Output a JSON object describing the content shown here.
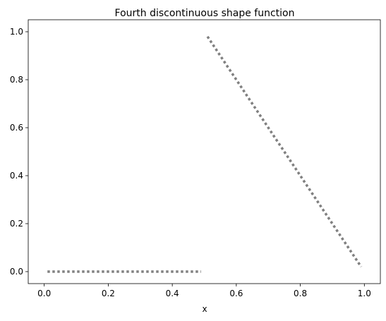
{
  "chart_data": {
    "type": "line",
    "title": "Fourth discontinuous shape function",
    "xlabel": "x",
    "ylabel": "",
    "xlim": [
      -0.05,
      1.05
    ],
    "ylim": [
      -0.05,
      1.05
    ],
    "xticks": [
      0.0,
      0.2,
      0.4,
      0.6,
      0.8,
      1.0
    ],
    "xtick_labels": [
      "0.0",
      "0.2",
      "0.4",
      "0.6",
      "0.8",
      "1.0"
    ],
    "yticks": [
      0.0,
      0.2,
      0.4,
      0.6,
      0.8,
      1.0
    ],
    "ytick_labels": [
      "0.0",
      "0.2",
      "0.4",
      "0.6",
      "0.8",
      "1.0"
    ],
    "grid": false,
    "series": [
      {
        "segments": [
          [
            [
              0.01,
              0.0
            ],
            [
              0.49,
              0.0
            ]
          ],
          [
            [
              0.51,
              0.98
            ],
            [
              0.99,
              0.02
            ]
          ]
        ],
        "color": "#808080",
        "line_style": "dotted"
      }
    ]
  }
}
